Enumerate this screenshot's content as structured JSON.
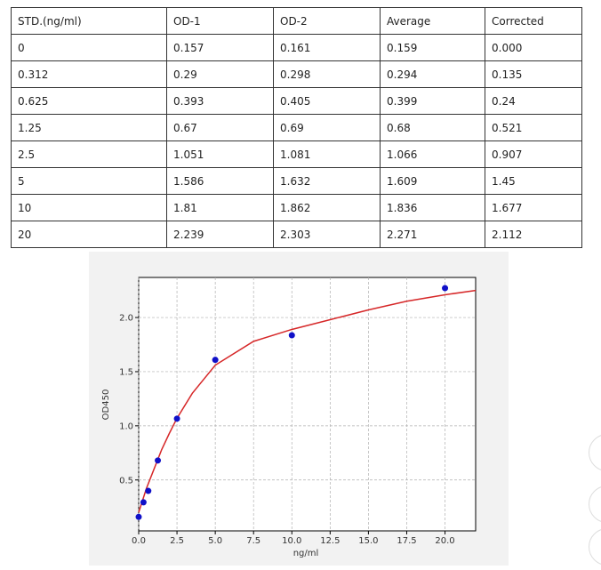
{
  "table": {
    "header": [
      "STD.(ng/ml)",
      "OD-1",
      "OD-2",
      "Average",
      "Corrected"
    ],
    "rows": [
      [
        "0",
        "0.157",
        "0.161",
        "0.159",
        "0.000"
      ],
      [
        "0.312",
        "0.29",
        "0.298",
        "0.294",
        "0.135"
      ],
      [
        "0.625",
        "0.393",
        "0.405",
        "0.399",
        "0.24"
      ],
      [
        "1.25",
        "0.67",
        "0.69",
        "0.68",
        "0.521"
      ],
      [
        "2.5",
        "1.051",
        "1.081",
        "1.066",
        "0.907"
      ],
      [
        "5",
        "1.586",
        "1.632",
        "1.609",
        "1.45"
      ],
      [
        "10",
        "1.81",
        "1.862",
        "1.836",
        "1.677"
      ],
      [
        "20",
        "2.239",
        "2.303",
        "2.271",
        "2.112"
      ]
    ]
  },
  "chart_data": {
    "type": "scatter",
    "xlabel": "ng/ml",
    "ylabel": "OD450",
    "x": [
      0,
      0.312,
      0.625,
      1.25,
      2.5,
      5,
      10,
      20
    ],
    "points": {
      "color": "#1010c8",
      "values": [
        0.159,
        0.294,
        0.399,
        0.68,
        1.066,
        1.609,
        1.836,
        2.271
      ]
    },
    "fit": {
      "color": "#d62728",
      "x": [
        0,
        0.5,
        1,
        1.5,
        2,
        2.5,
        3.5,
        5,
        7.5,
        10,
        12.5,
        15,
        17.5,
        20,
        22
      ],
      "values": [
        0.2,
        0.42,
        0.6,
        0.78,
        0.93,
        1.07,
        1.3,
        1.56,
        1.78,
        1.89,
        1.98,
        2.07,
        2.15,
        2.21,
        2.25
      ]
    },
    "xlim": [
      0,
      22
    ],
    "ylim": [
      0.03,
      2.37
    ],
    "xticks": [
      {
        "value": 0,
        "label": "0.0"
      },
      2.5,
      {
        "value": 5,
        "label": "5.0"
      },
      7.5,
      {
        "value": 10,
        "label": "10.0"
      },
      12.5,
      {
        "value": 15,
        "label": "15.0"
      },
      17.5,
      {
        "value": 20,
        "label": "20.0"
      }
    ],
    "yticks": [
      0.5,
      {
        "value": 1,
        "label": "1.0"
      },
      1.5,
      {
        "value": 2,
        "label": "2.0"
      }
    ],
    "grid": true
  }
}
